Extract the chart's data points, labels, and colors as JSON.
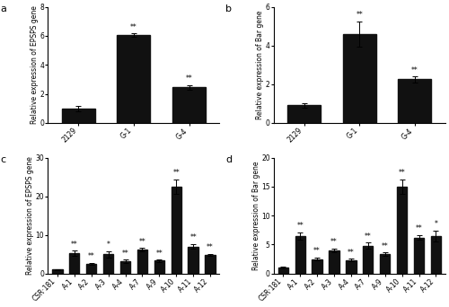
{
  "panel_a": {
    "categories": [
      "2129",
      "G-1",
      "G-4"
    ],
    "values": [
      1.0,
      6.05,
      2.45
    ],
    "errors": [
      0.18,
      0.12,
      0.15
    ],
    "significance": [
      "",
      "**",
      "**"
    ],
    "ylabel": "Relative expression of EPSPS gene",
    "ylim": [
      0,
      8
    ],
    "yticks": [
      0,
      2,
      4,
      6,
      8
    ],
    "label": "a"
  },
  "panel_b": {
    "categories": [
      "2129",
      "G-1",
      "G-4"
    ],
    "values": [
      0.9,
      4.6,
      2.25
    ],
    "errors": [
      0.12,
      0.65,
      0.15
    ],
    "significance": [
      "",
      "**",
      "**"
    ],
    "ylabel": "Relative expression of Bar gene",
    "ylim": [
      0,
      6
    ],
    "yticks": [
      0,
      2,
      4,
      6
    ],
    "label": "b"
  },
  "panel_c": {
    "categories": [
      "CSR·181",
      "A-1",
      "A-2",
      "A-3",
      "A-4",
      "A-7",
      "A-9",
      "A-10",
      "A-11",
      "A-12"
    ],
    "values": [
      1.0,
      5.2,
      2.5,
      5.0,
      3.2,
      6.2,
      3.3,
      22.5,
      7.0,
      4.8
    ],
    "errors": [
      0.1,
      0.7,
      0.3,
      0.8,
      0.4,
      0.4,
      0.3,
      1.8,
      0.6,
      0.3
    ],
    "significance": [
      "",
      "**",
      "**",
      "*",
      "**",
      "**",
      "**",
      "**",
      "**",
      "**"
    ],
    "ylabel": "Relative expression of EPSPS gene",
    "ylim": [
      0,
      30
    ],
    "yticks": [
      0,
      10,
      20,
      30
    ],
    "label": "c"
  },
  "panel_d": {
    "categories": [
      "CSR·181",
      "A-1",
      "A-2",
      "A-3",
      "A-4",
      "A-7",
      "A-9",
      "A-10",
      "A-11",
      "A-12"
    ],
    "values": [
      1.0,
      6.5,
      2.5,
      4.0,
      2.3,
      4.8,
      3.3,
      15.0,
      6.2,
      6.5
    ],
    "errors": [
      0.15,
      0.6,
      0.25,
      0.35,
      0.25,
      0.5,
      0.3,
      1.2,
      0.4,
      0.9
    ],
    "significance": [
      "",
      "**",
      "**",
      "**",
      "**",
      "**",
      "**",
      "**",
      "**",
      "*"
    ],
    "ylabel": "Relative expression of Bar gene",
    "ylim": [
      0,
      20
    ],
    "yticks": [
      0,
      5,
      10,
      15,
      20
    ],
    "label": "d"
  },
  "bar_color": "#111111",
  "bar_edgecolor": "#111111",
  "bg_color": "#ffffff",
  "sig_fontsize": 5.5,
  "label_fontsize": 8,
  "tick_fontsize": 5.5,
  "ylabel_fontsize": 5.5
}
